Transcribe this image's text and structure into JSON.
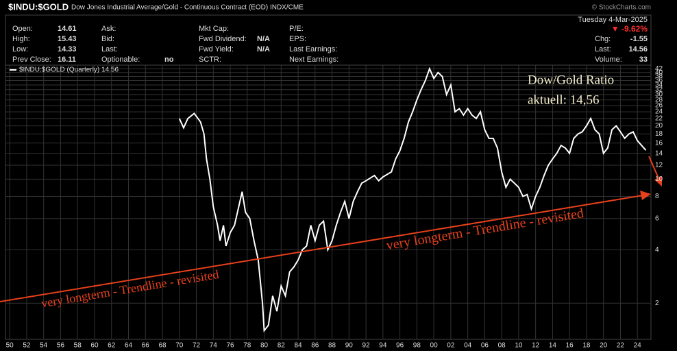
{
  "header": {
    "symbol": "$INDU:$GOLD",
    "description": "Dow Jones Industrial Average/Gold - Continuous Contract (EOD) INDX/CME",
    "source": "© StockCharts.com",
    "date": "Tuesday  4-Mar-2025",
    "change_pct": "▼ -9.62%",
    "columns": [
      [
        {
          "label": "Open:",
          "value": "14.61"
        },
        {
          "label": "High:",
          "value": "15.43"
        },
        {
          "label": "Low:",
          "value": "14.33"
        },
        {
          "label": "Prev Close:",
          "value": "16.11"
        }
      ],
      [
        {
          "label": "Ask:"
        },
        {
          "label": "Bid:"
        },
        {
          "label": "Last:"
        },
        {
          "label": "Optionable:",
          "value": "no"
        }
      ],
      [
        {
          "label": "Mkt Cap:"
        },
        {
          "label": "Fwd Dividend:",
          "value": "N/A"
        },
        {
          "label": "Fwd Yield:",
          "value": "N/A"
        },
        {
          "label": "SCTR:"
        }
      ],
      [
        {
          "label": "P/E:"
        },
        {
          "label": "EPS:"
        },
        {
          "label": "Last Earnings:"
        },
        {
          "label": "Next Earnings:"
        }
      ]
    ],
    "right": [
      {
        "label": "Chg:",
        "value": "-1.55"
      },
      {
        "label": "Last:",
        "value": "14.56"
      },
      {
        "label": "Volume:",
        "value": "33"
      }
    ]
  },
  "chart_data": {
    "type": "line",
    "annotations": [
      "Dow/Gold Ratio",
      "aktuell: 14,56",
      "very longterm - Trendline - revisited",
      "very longterm - Trendline - revisited"
    ],
    "log_scale": true,
    "grid": true,
    "x": [
      1970,
      1970.5,
      1971,
      1971.75,
      1972.5,
      1972.9,
      1973.2,
      1973.6,
      1974,
      1974.5,
      1974.8,
      1975.2,
      1975.5,
      1976,
      1976.5,
      1977,
      1977.4,
      1977.8,
      1978.3,
      1978.8,
      1979.3,
      1979.8,
      1980,
      1980.5,
      1981,
      1981.5,
      1982,
      1982.5,
      1983,
      1983.5,
      1984,
      1984.5,
      1985,
      1985.5,
      1986,
      1986.5,
      1987,
      1987.5,
      1988,
      1988.5,
      1989,
      1989.5,
      1990,
      1990.5,
      1991,
      1991.5,
      1992,
      1993,
      1993.5,
      1994,
      1995,
      1995.5,
      1996,
      1996.5,
      1997,
      1997.5,
      1998,
      1998.5,
      1999,
      1999.5,
      2000,
      2000.5,
      2001,
      2001.5,
      2002,
      2002.5,
      2003,
      2003.5,
      2004,
      2004.5,
      2005,
      2005.5,
      2006,
      2006.5,
      2007,
      2007.5,
      2008,
      2008.5,
      2009,
      2009.5,
      2010,
      2010.5,
      2011,
      2011.5,
      2012,
      2012.5,
      2013,
      2013.5,
      2014,
      2014.5,
      2015,
      2015.5,
      2016,
      2016.5,
      2017,
      2017.5,
      2018,
      2018.5,
      2019,
      2019.5,
      2020,
      2020.5,
      2021,
      2021.5,
      2022,
      2022.5,
      2023,
      2023.5,
      2024,
      2024.5,
      2025
    ],
    "series": [
      {
        "name": "$INDU:$GOLD (Quarterly) 14.56",
        "color": "#ffffff",
        "values": [
          22,
          19.5,
          22,
          23.5,
          21,
          18,
          13,
          10,
          7,
          5.5,
          4.5,
          5.5,
          4.2,
          5,
          5.5,
          7,
          8.5,
          6.5,
          6,
          4.5,
          3.5,
          2,
          1.4,
          1.5,
          2.2,
          1.8,
          2.5,
          2.2,
          3,
          3.2,
          3.5,
          4,
          4.2,
          5.5,
          4.5,
          5.5,
          5.8,
          4,
          4.5,
          5.5,
          6.5,
          7.5,
          6,
          7.5,
          8.5,
          9.5,
          9.8,
          10.5,
          9.8,
          10.3,
          11,
          13,
          14.5,
          17,
          21,
          24,
          28,
          32,
          36,
          42,
          37,
          40,
          38,
          30,
          34,
          24,
          25,
          23,
          25,
          23,
          22,
          24,
          19,
          17,
          17,
          15,
          11,
          9,
          10,
          9.5,
          9,
          8,
          8.2,
          6.8,
          8,
          9,
          10.5,
          12,
          13,
          14,
          15.5,
          15,
          14,
          17,
          18,
          18.5,
          20,
          22,
          19,
          18,
          14,
          15,
          19,
          20,
          18.5,
          17,
          18,
          18.5,
          16.5,
          15.5,
          14.56
        ]
      }
    ],
    "xlim": [
      1949.5,
      2025.6
    ],
    "xticks": [
      {
        "value": 1950,
        "label": "50"
      },
      {
        "value": 1952,
        "label": "52"
      },
      {
        "value": 1954,
        "label": "54"
      },
      {
        "value": 1956,
        "label": "56"
      },
      {
        "value": 1958,
        "label": "58"
      },
      {
        "value": 1960,
        "label": "60"
      },
      {
        "value": 1962,
        "label": "62"
      },
      {
        "value": 1964,
        "label": "64"
      },
      {
        "value": 1966,
        "label": "66"
      },
      {
        "value": 1968,
        "label": "68"
      },
      {
        "value": 1970,
        "label": "70"
      },
      {
        "value": 1972,
        "label": "72"
      },
      {
        "value": 1974,
        "label": "74"
      },
      {
        "value": 1976,
        "label": "76"
      },
      {
        "value": 1978,
        "label": "78"
      },
      {
        "value": 1980,
        "label": "80"
      },
      {
        "value": 1982,
        "label": "82"
      },
      {
        "value": 1984,
        "label": "84"
      },
      {
        "value": 1986,
        "label": "86"
      },
      {
        "value": 1988,
        "label": "88"
      },
      {
        "value": 1990,
        "label": "90"
      },
      {
        "value": 1992,
        "label": "92"
      },
      {
        "value": 1994,
        "label": "94"
      },
      {
        "value": 1996,
        "label": "96"
      },
      {
        "value": 1998,
        "label": "98"
      },
      {
        "value": 2000,
        "label": "00"
      },
      {
        "value": 2002,
        "label": "02"
      },
      {
        "value": 2004,
        "label": "04"
      },
      {
        "value": 2006,
        "label": "06"
      },
      {
        "value": 2008,
        "label": "08"
      },
      {
        "value": 2010,
        "label": "10"
      },
      {
        "value": 2012,
        "label": "12"
      },
      {
        "value": 2014,
        "label": "14"
      },
      {
        "value": 2016,
        "label": "16"
      },
      {
        "value": 2018,
        "label": "18"
      },
      {
        "value": 2020,
        "label": "20"
      },
      {
        "value": 2022,
        "label": "22"
      },
      {
        "value": 2024,
        "label": "24"
      }
    ],
    "ylim": [
      1.25,
      44
    ],
    "yticks": [
      2,
      4,
      6,
      8,
      10,
      12,
      14,
      16,
      18,
      20,
      22,
      24,
      26,
      28,
      30,
      32,
      34,
      36,
      38,
      40,
      42
    ]
  }
}
